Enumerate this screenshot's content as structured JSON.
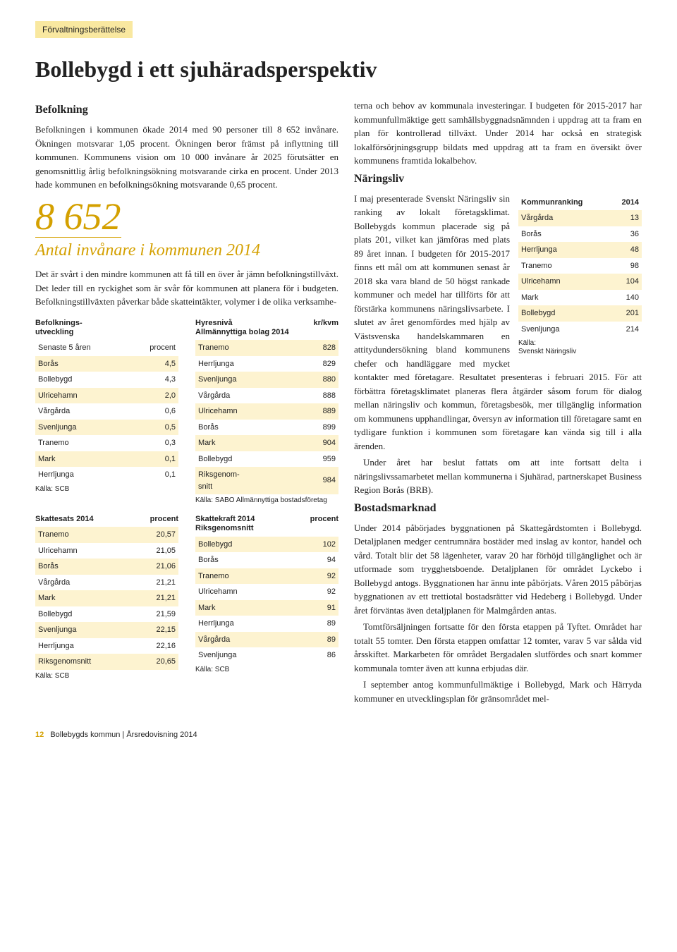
{
  "header_tab": "Förvaltningsberättelse",
  "title": "Bollebygd i ett sjuhäradsperspektiv",
  "left": {
    "h_befolkning": "Befolkning",
    "p1": "Befolkningen i kommunen ökade 2014 med 90 personer till 8 652 invånare. Ökningen motsvarar 1,05 procent. Ökningen beror främst på inflyttning till kommunen. Kommunens vision om 10 000 invånare år 2025 förutsätter en genomsnittlig årlig befolkningsökning motsvarande cirka en procent. Under 2013 hade kommunen en befolkningsökning motsvarande 0,65 procent.",
    "bignum": "8 652",
    "bignum_caption": "Antal invånare i kommunen 2014",
    "p2": "Det är svårt i den mindre kommunen att få till en över år jämn befolkningstillväxt. Det leder till en ryckighet som är svår för kommunen att planera för i budgeten. Befolkningstillväxten påverkar både skatteintäkter, volymer i de olika verksamhe-"
  },
  "right": {
    "p1": "terna och behov av kommunala investeringar. I budgeten för 2015-2017 har kommunfullmäktige gett samhällsbyggnadsnämnden i uppdrag att ta fram en plan för kontrollerad tillväxt. Under 2014 har också en strategisk lokalförsörjningsgrupp bildats med uppdrag att ta fram en översikt över kommunens framtida lokalbehov.",
    "h_naringsliv": "Näringsliv",
    "p2": "I maj presenterade Svenskt Näringsliv sin ranking av lokalt företagsklimat. Bollebygds kommun placerade sig på plats 201, vilket kan jämföras med plats 89 året innan. I budgeten för 2015-2017 finns ett mål om att kommunen senast år 2018 ska vara bland de 50 högst rankade kommuner och medel har tillförts för att förstärka kommunens näringslivsarbete. I slutet av året genomfördes med hjälp av Västsvenska handelskammaren en attitydundersökning bland kommunens chefer och handläggare med mycket kontakter med företagare. Resultatet presenteras i februari 2015. För att förbättra företagsklimatet planeras flera åtgärder såsom forum för dialog mellan näringsliv och kommun, företagsbesök, mer tillgänglig information om kommunens upphandlingar, översyn av information till företagare samt en tydligare funktion i kommunen som företagare kan vända sig till i alla ärenden.",
    "p3": "Under året har beslut fattats om att inte fortsatt delta i näringslivssamarbetet mellan kommunerna i Sjuhärad, partnerskapet Business Region Borås (BRB).",
    "h_bostad": "Bostadsmarknad",
    "p4": "Under 2014 påbörjades byggnationen på Skattegårdstomten i Bollebygd. Detaljplanen medger centrumnära bostäder med inslag av kontor, handel och vård. Totalt blir det 58 lägenheter, varav 20 har förhöjd tillgänglighet och är utformade som trygghetsboende. Detaljplanen för området Lyckebo i Bollebygd antogs. Byggnationen har ännu inte påbörjats. Våren 2015 påbörjas byggnationen av ett trettiotal bostadsrätter vid Hedeberg i Bollebygd. Under året förväntas även detaljplanen för Malmgården antas.",
    "p5": "Tomtförsäljningen fortsatte för den första etappen på Tyftet. Området har totalt 55 tomter. Den första etappen omfattar 12 tomter, varav 5 var sålda vid årsskiftet. Markarbeten för området Bergadalen slutfördes och snart kommer kommunala tomter även att kunna erbjudas där.",
    "p6": "I september antog kommunfullmäktige i Bollebygd, Mark och Härryda kommuner en utvecklingsplan för gränsområdet mel-"
  },
  "tbl_befolkning": {
    "title": "Befolknings-\nutveckling",
    "col1": "Senaste 5 åren",
    "col2": "procent",
    "rows": [
      [
        "Borås",
        "4,5"
      ],
      [
        "Bollebygd",
        "4,3"
      ],
      [
        "Ulricehamn",
        "2,0"
      ],
      [
        "Vårgårda",
        "0,6"
      ],
      [
        "Svenljunga",
        "0,5"
      ],
      [
        "Tranemo",
        "0,3"
      ],
      [
        "Mark",
        "0,1"
      ],
      [
        "Herrljunga",
        "0,1"
      ]
    ],
    "src": "Källa: SCB"
  },
  "tbl_hyra": {
    "title": "Hyresnivå\nAllmännyttiga bolag 2014",
    "col2": "kr/kvm",
    "rows": [
      [
        "Tranemo",
        "828"
      ],
      [
        "Herrljunga",
        "829"
      ],
      [
        "Svenljunga",
        "880"
      ],
      [
        "Vårgårda",
        "888"
      ],
      [
        "Ulricehamn",
        "889"
      ],
      [
        "Borås",
        "899"
      ],
      [
        "Mark",
        "904"
      ],
      [
        "Bollebygd",
        "959"
      ],
      [
        "Riksgenom-\nsnitt",
        "984"
      ]
    ],
    "src": "Källa: SABO Allmännyttiga bostadsföretag"
  },
  "tbl_skattesats": {
    "title": "Skattesats 2014",
    "col2": "procent",
    "rows": [
      [
        "Tranemo",
        "20,57"
      ],
      [
        "Ulricehamn",
        "21,05"
      ],
      [
        "Borås",
        "21,06"
      ],
      [
        "Vårgårda",
        "21,21"
      ],
      [
        "Mark",
        "21,21"
      ],
      [
        "Bollebygd",
        "21,59"
      ],
      [
        "Svenljunga",
        "22,15"
      ],
      [
        "Herrljunga",
        "22,16"
      ],
      [
        "Riksgenomsnitt",
        "20,65"
      ]
    ],
    "src": "Källa: SCB"
  },
  "tbl_skattekraft": {
    "title": "Skattekraft 2014\nRiksgenomsnitt",
    "col2": "procent",
    "rows": [
      [
        "Bollebygd",
        "102"
      ],
      [
        "Borås",
        "94"
      ],
      [
        "Tranemo",
        "92"
      ],
      [
        "Ulricehamn",
        "92"
      ],
      [
        "Mark",
        "91"
      ],
      [
        "Herrljunga",
        "89"
      ],
      [
        "Vårgårda",
        "89"
      ],
      [
        "Svenljunga",
        "86"
      ]
    ],
    "src": "Källa: SCB"
  },
  "tbl_ranking": {
    "col1": "Kommunranking",
    "col2": "2014",
    "rows": [
      [
        "Vårgårda",
        "13"
      ],
      [
        "Borås",
        "36"
      ],
      [
        "Herrljunga",
        "48"
      ],
      [
        "Tranemo",
        "98"
      ],
      [
        "Ulricehamn",
        "104"
      ],
      [
        "Mark",
        "140"
      ],
      [
        "Bollebygd",
        "201"
      ],
      [
        "Svenljunga",
        "214"
      ]
    ],
    "src": "Källa:\nSvenskt Näringsliv"
  },
  "footer": {
    "page": "12",
    "text": "Bollebygds kommun | Årsredovisning 2014"
  }
}
